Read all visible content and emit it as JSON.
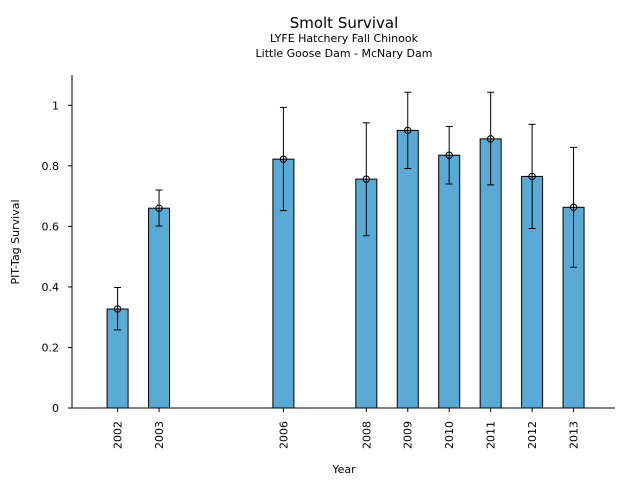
{
  "chart_data": {
    "type": "bar",
    "title": "Smolt Survival",
    "subtitle": [
      "LYFE Hatchery Fall Chinook",
      "Little Goose Dam - McNary Dam"
    ],
    "xlabel": "Year",
    "ylabel": "PIT-Tag Survival",
    "ylim": [
      0,
      1.1
    ],
    "y_ticks": [
      0,
      0.2,
      0.4,
      0.6,
      0.8,
      1
    ],
    "y_tick_labels": [
      "0",
      "0.2",
      "0.4",
      "0.6",
      "0.8",
      "1"
    ],
    "x_range": [
      2000.9,
      2014.0
    ],
    "bar_color": "#5aaad6",
    "grid": false,
    "data": [
      {
        "year": 2002,
        "label": "2002",
        "value": 0.327,
        "lower": 0.258,
        "upper": 0.398
      },
      {
        "year": 2003,
        "label": "2003",
        "value": 0.66,
        "lower": 0.601,
        "upper": 0.72
      },
      {
        "year": 2006,
        "label": "2006",
        "value": 0.822,
        "lower": 0.652,
        "upper": 0.993
      },
      {
        "year": 2008,
        "label": "2008",
        "value": 0.756,
        "lower": 0.569,
        "upper": 0.942
      },
      {
        "year": 2009,
        "label": "2009",
        "value": 0.917,
        "lower": 0.791,
        "upper": 1.043
      },
      {
        "year": 2010,
        "label": "2010",
        "value": 0.835,
        "lower": 0.74,
        "upper": 0.93
      },
      {
        "year": 2011,
        "label": "2011",
        "value": 0.889,
        "lower": 0.737,
        "upper": 1.043
      },
      {
        "year": 2012,
        "label": "2012",
        "value": 0.765,
        "lower": 0.593,
        "upper": 0.937
      },
      {
        "year": 2013,
        "label": "2013",
        "value": 0.663,
        "lower": 0.465,
        "upper": 0.861
      }
    ]
  }
}
